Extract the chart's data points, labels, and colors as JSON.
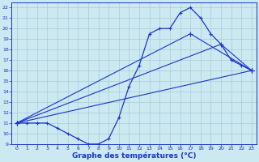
{
  "bg_color": "#cce8f0",
  "line_color": "#1a35c8",
  "grid_color": "#a8ccd8",
  "xlabel": "Graphe des températures (°C)",
  "xlabel_fontsize": 6.5,
  "xlim": [
    -0.5,
    23.5
  ],
  "ylim": [
    9,
    22.5
  ],
  "yticks": [
    9,
    10,
    11,
    12,
    13,
    14,
    15,
    16,
    17,
    18,
    19,
    20,
    21,
    22
  ],
  "xticks": [
    0,
    1,
    2,
    3,
    4,
    5,
    6,
    7,
    8,
    9,
    10,
    11,
    12,
    13,
    14,
    15,
    16,
    17,
    18,
    19,
    20,
    21,
    22,
    23
  ],
  "hourly": {
    "x": [
      0,
      1,
      2,
      3,
      4,
      5,
      6,
      7,
      8,
      9,
      10,
      11,
      12,
      13,
      14,
      15,
      16,
      17,
      18,
      19,
      20,
      21,
      22,
      23
    ],
    "y": [
      11,
      11,
      11,
      11,
      10.5,
      10,
      9.5,
      9,
      9,
      9.5,
      11.5,
      14.5,
      16.5,
      19.5,
      20,
      20,
      21.5,
      22,
      21,
      19.5,
      18.5,
      17,
      16.5,
      16
    ]
  },
  "line_upper": {
    "x": [
      0,
      17,
      23
    ],
    "y": [
      11,
      19.5,
      16
    ]
  },
  "line_mid": {
    "x": [
      0,
      20,
      23
    ],
    "y": [
      11,
      18.5,
      16
    ]
  },
  "line_lower": {
    "x": [
      0,
      23
    ],
    "y": [
      11,
      16
    ]
  }
}
